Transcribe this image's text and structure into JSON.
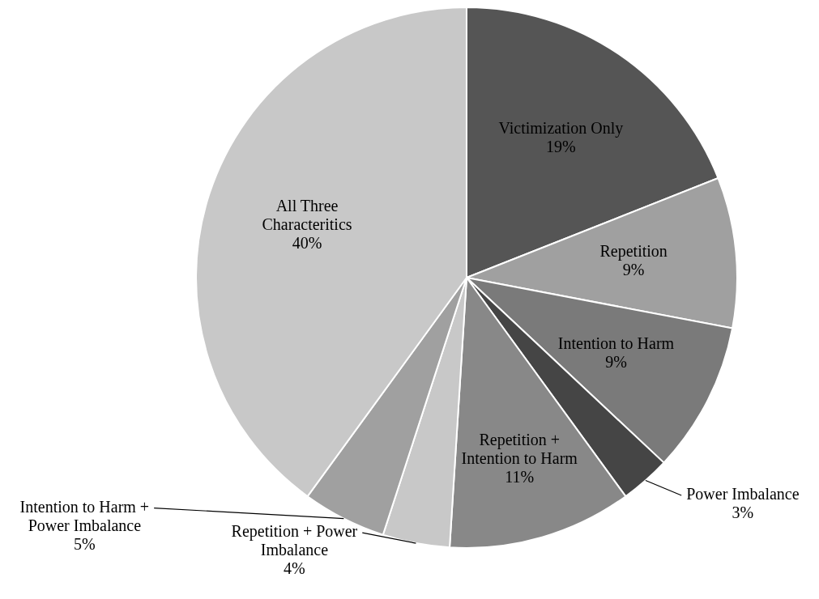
{
  "chart_data": {
    "type": "pie",
    "categories": [
      "Victimization Only",
      "Repetition",
      "Intention to Harm",
      "Power Imbalance",
      "Repetition + Intention to Harm",
      "Repetition + Power Imbalance",
      "Intention to Harm + Power Imbalance",
      "All Three Characteritics"
    ],
    "values": [
      19,
      9,
      9,
      3,
      11,
      4,
      5,
      40
    ],
    "colors": [
      "#555555",
      "#a0a0a0",
      "#7a7a7a",
      "#454545",
      "#888888",
      "#c8c8c8",
      "#a0a0a0",
      "#c8c8c8"
    ],
    "value_labels": [
      "19%",
      "9%",
      "9%",
      "3%",
      "11%",
      "4%",
      "5%",
      "40%"
    ],
    "legend": false
  }
}
